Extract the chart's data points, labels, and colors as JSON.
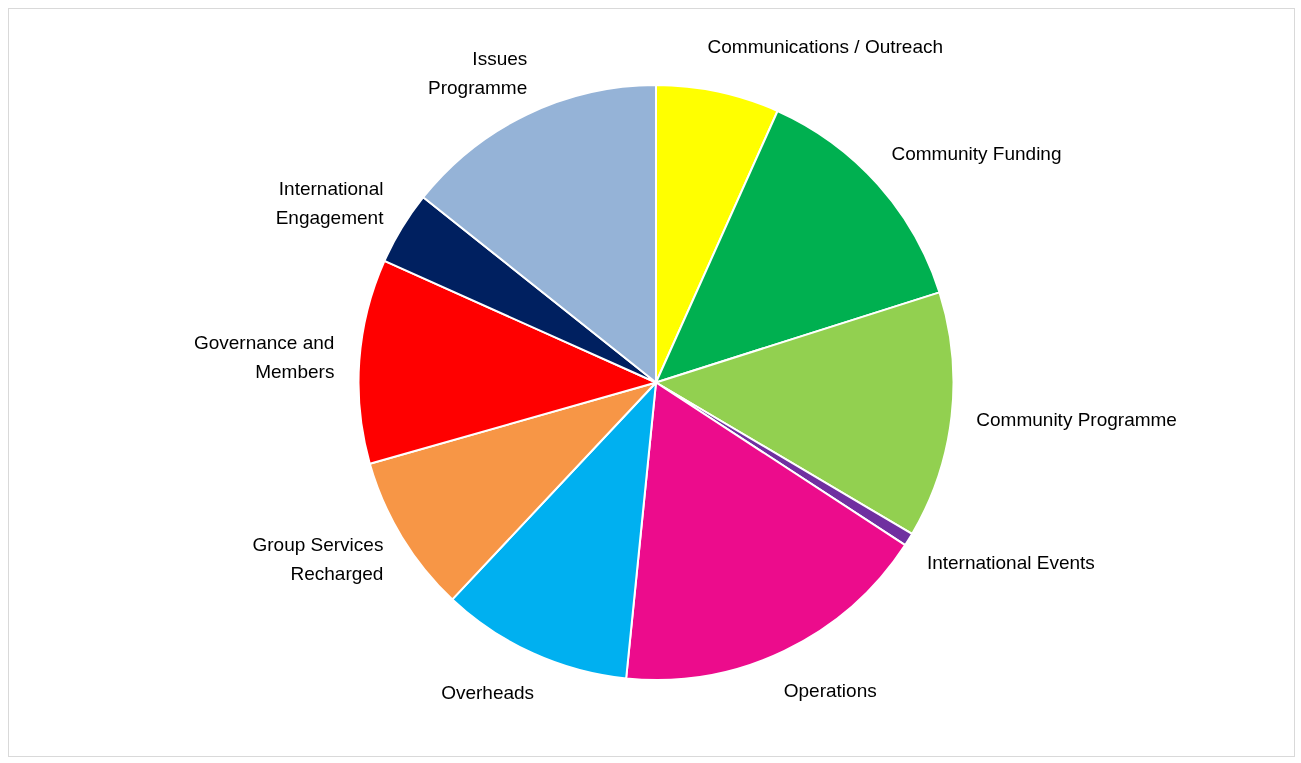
{
  "chart_data": {
    "type": "pie",
    "categories": [
      "Communications / Outreach",
      "Community Funding",
      "Community Programme",
      "International Events",
      "Operations",
      "Overheads",
      "Group Services Recharged",
      "Governance and Members",
      "International Engagement",
      "Issues Programme"
    ],
    "values": [
      6.7,
      13.4,
      13.4,
      0.7,
      17.4,
      10.4,
      8.6,
      11.1,
      4.0,
      14.3
    ],
    "colors": [
      "#ffff00",
      "#00b050",
      "#92d050",
      "#7030a0",
      "#ec0c8c",
      "#00b0f0",
      "#f79646",
      "#ff0000",
      "#002060",
      "#95b3d7"
    ],
    "legend": false
  }
}
